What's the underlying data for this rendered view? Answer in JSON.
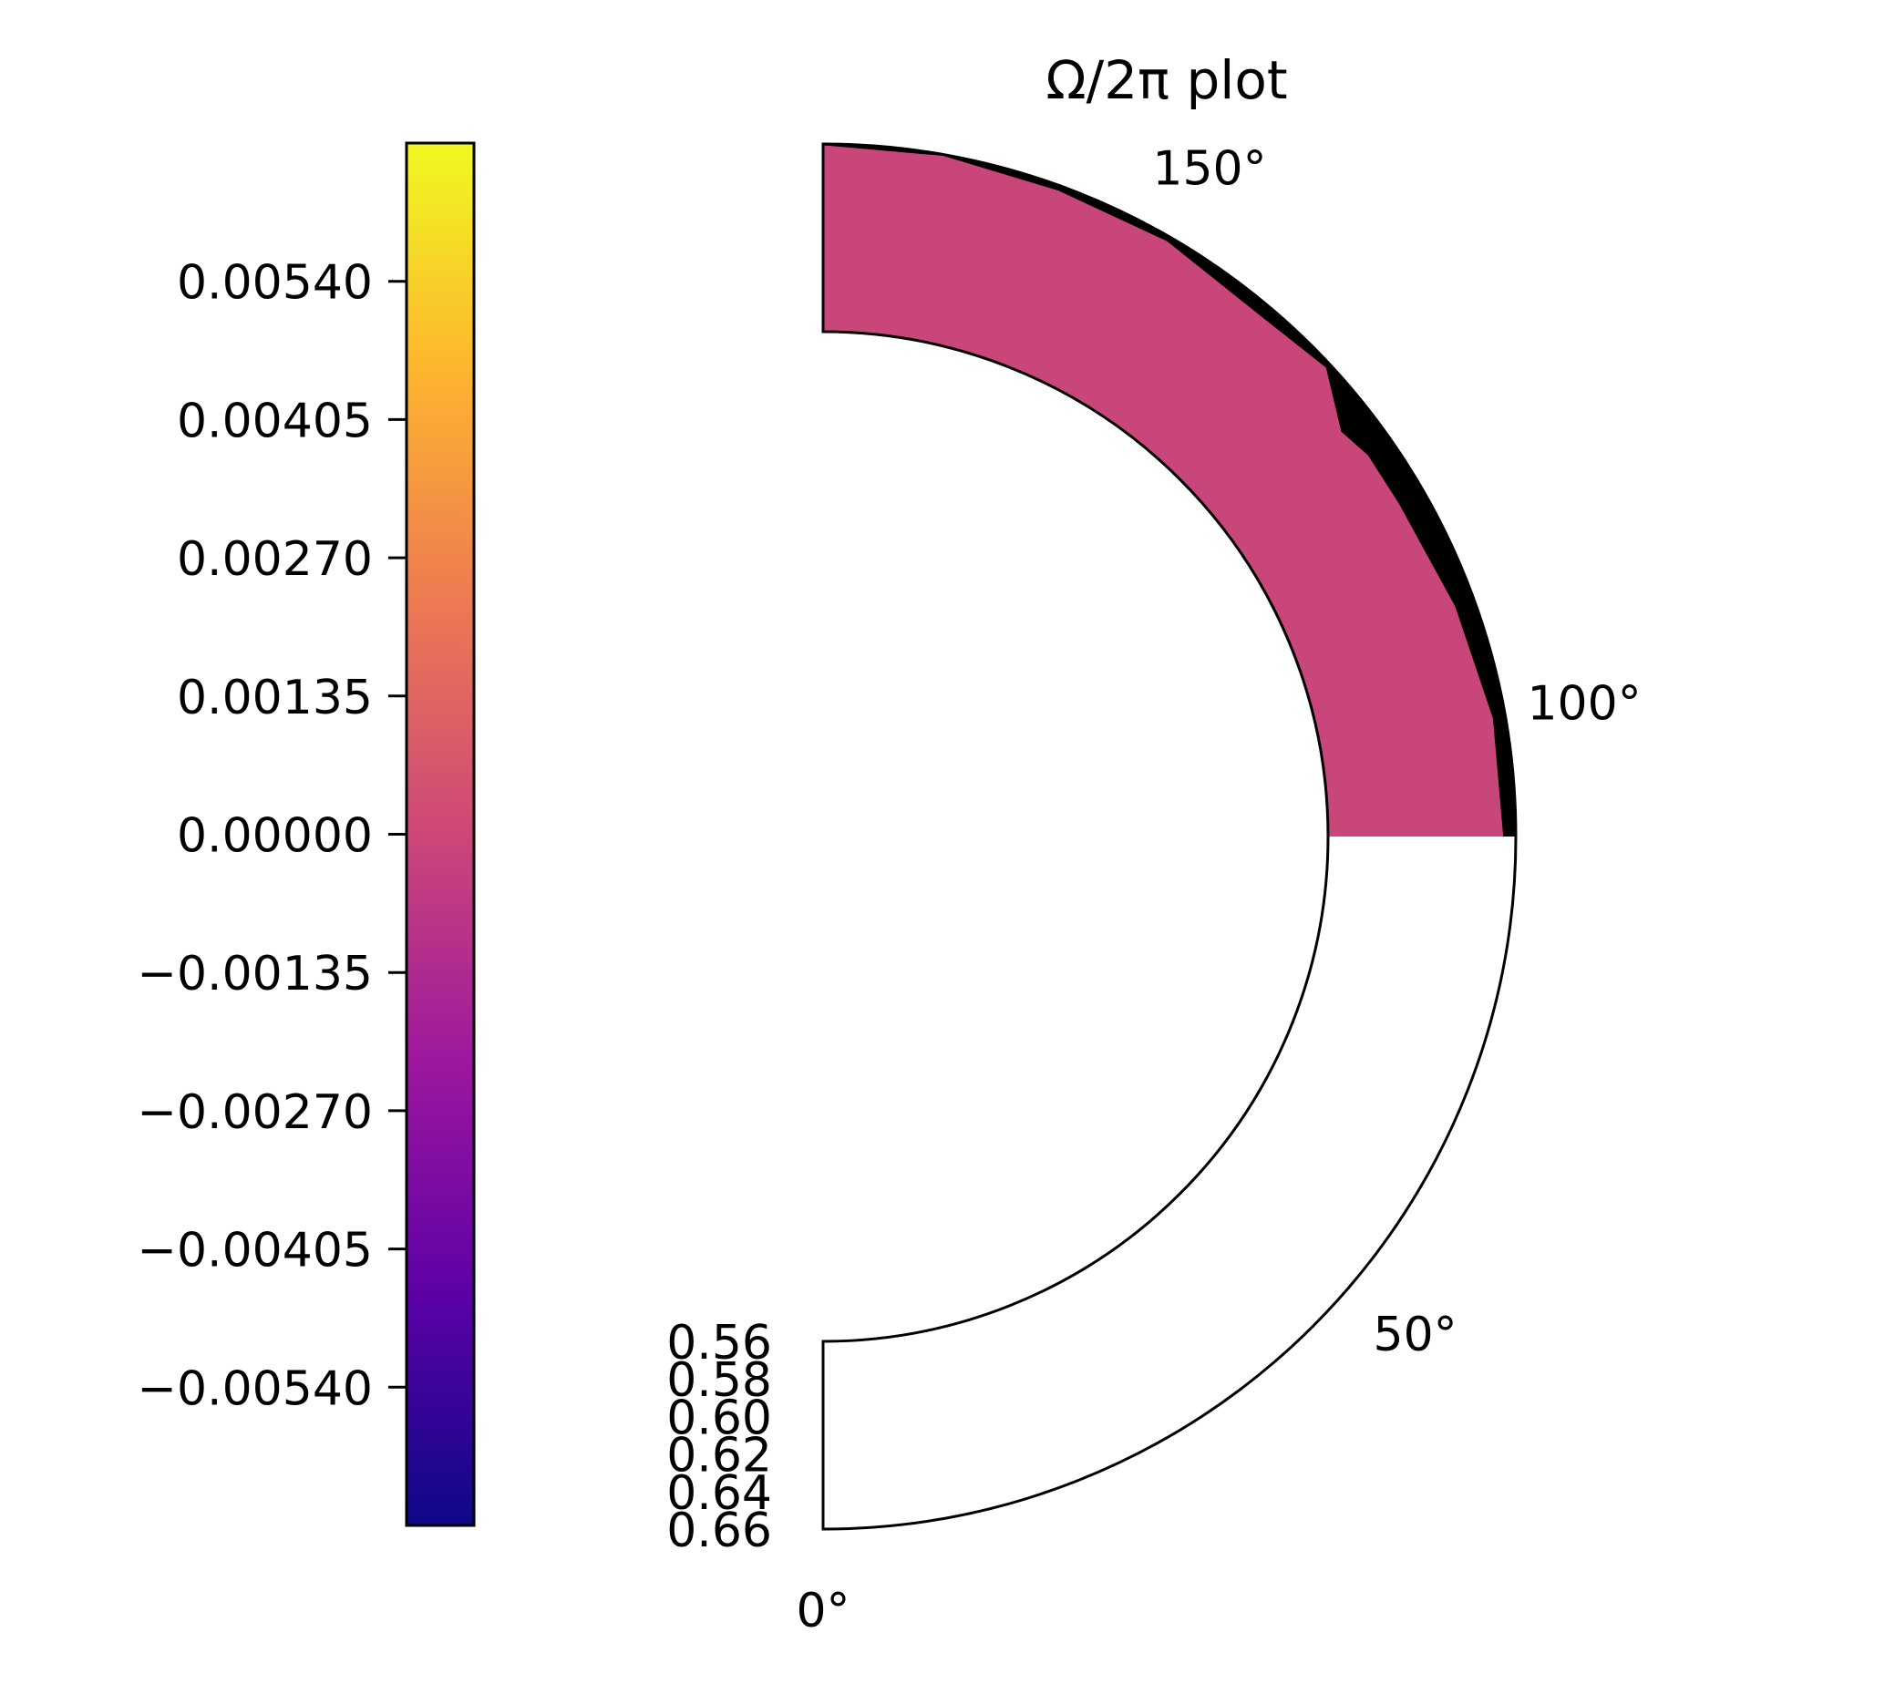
{
  "colors": {
    "pink_fill": "#c8467a",
    "dark_band": "#000000",
    "axis_line": "#000000",
    "background": "#ffffff"
  },
  "chart_data": {
    "type": "heatmap",
    "projection": "polar (half-annulus)",
    "title": "Ω/2π plot",
    "colormap": "plasma",
    "colorbar": {
      "range": [
        -0.00675,
        0.00675
      ],
      "ticks": [
        0.0054,
        0.00405,
        0.0027,
        0.00135,
        0.0,
        -0.00135,
        -0.0027,
        -0.00405,
        -0.0054
      ],
      "tick_labels": [
        "0.00540",
        "0.00405",
        "0.00270",
        "0.00135",
        "0.00000",
        "−0.00135",
        "−0.00270",
        "−0.00405",
        "−0.00540"
      ],
      "colormap_stops": [
        "#0d0887",
        "#5c01a6",
        "#9c179e",
        "#cc4778",
        "#ed7953",
        "#fdb42f",
        "#f0f921"
      ]
    },
    "theta_axis": {
      "range_deg": [
        0,
        180
      ],
      "ticks_deg": [
        0,
        50,
        100,
        150
      ],
      "tick_labels": [
        "0°",
        "50°",
        "100°",
        "150°"
      ]
    },
    "r_axis": {
      "range": [
        0.56,
        0.66
      ],
      "ticks": [
        0.56,
        0.58,
        0.6,
        0.62,
        0.64,
        0.66
      ],
      "tick_labels": [
        "0.56",
        "0.58",
        "0.60",
        "0.62",
        "0.64",
        "0.66"
      ]
    },
    "field": {
      "theta_range_deg": [
        90,
        180
      ],
      "r_range": [
        0.56,
        0.66
      ],
      "dominant_value": 0.0,
      "outer_band_value": "below colorbar range (black)",
      "outer_band_r_start": [
        {
          "theta": 90,
          "r": 0.6533
        },
        {
          "theta": 100,
          "r": 0.6533
        },
        {
          "theta": 110,
          "r": 0.6493
        },
        {
          "theta": 120,
          "r": 0.6453
        },
        {
          "theta": 125,
          "r": 0.6453
        },
        {
          "theta": 128,
          "r": 0.6413
        },
        {
          "theta": 133,
          "r": 0.6573
        },
        {
          "theta": 140,
          "r": 0.6533
        },
        {
          "theta": 150,
          "r": 0.6573
        },
        {
          "theta": 160,
          "r": 0.6573
        },
        {
          "theta": 170,
          "r": 0.6593
        },
        {
          "theta": 180,
          "r": 0.6593
        }
      ]
    }
  }
}
